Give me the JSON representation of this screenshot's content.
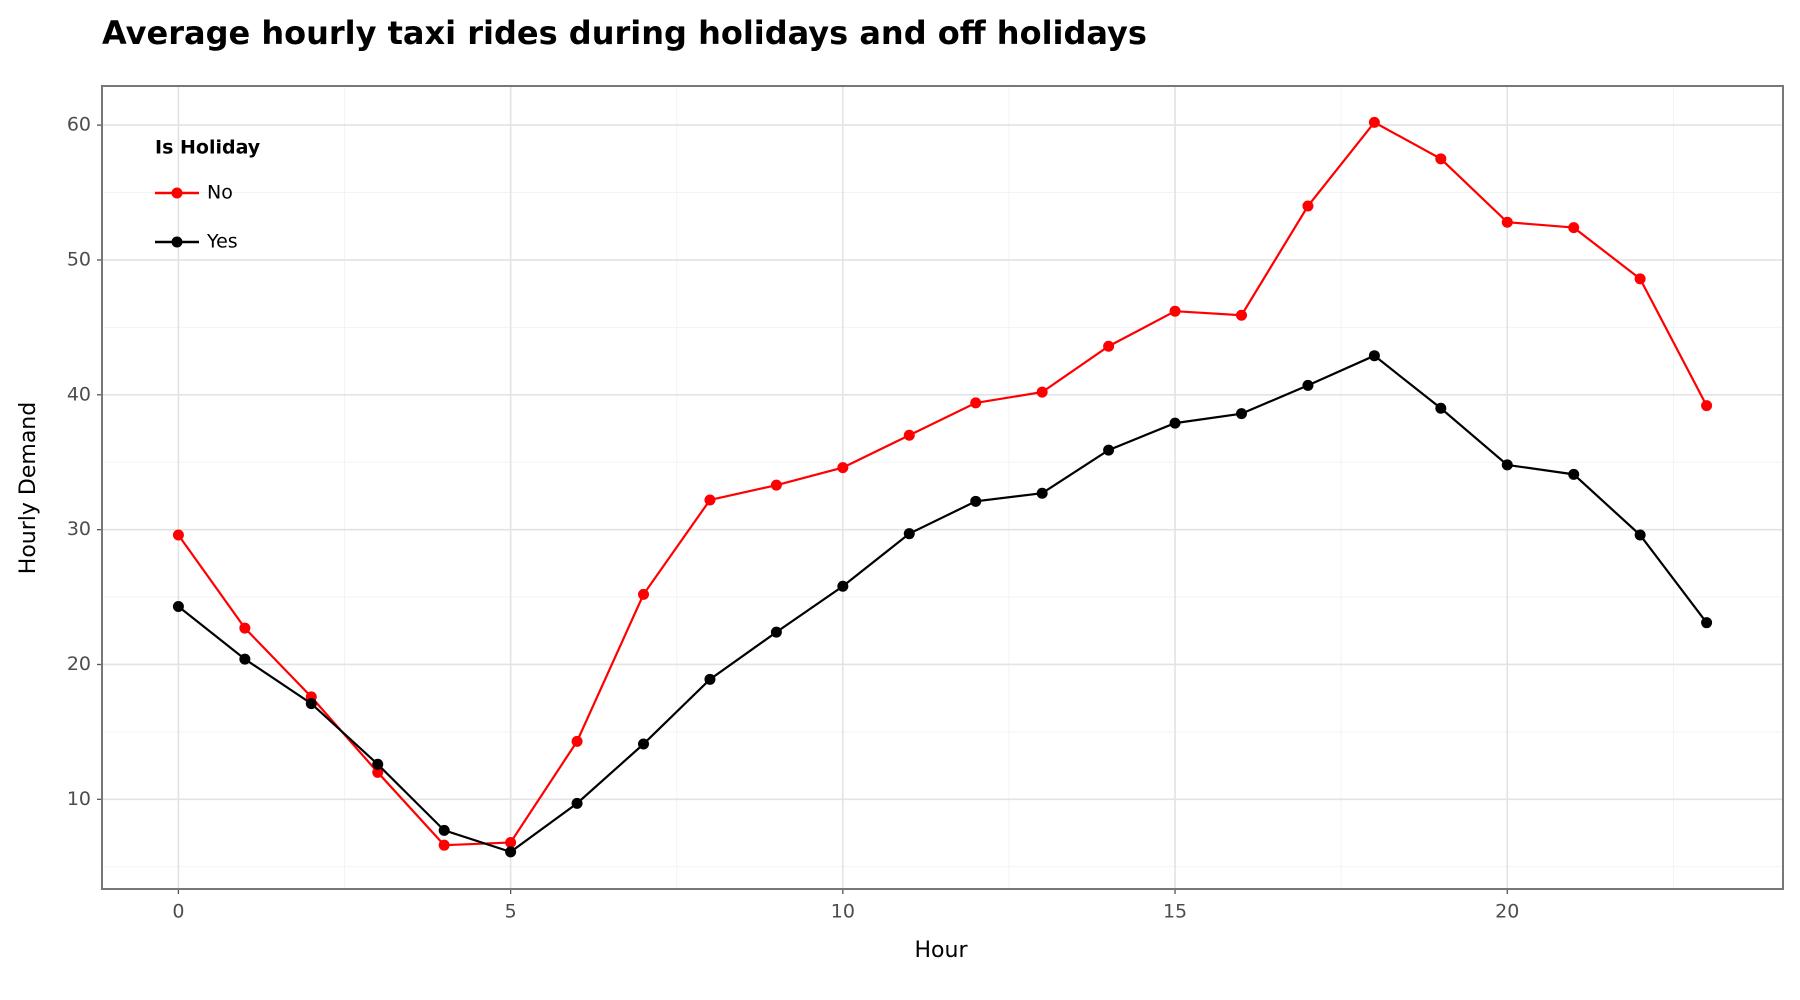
{
  "chart_data": {
    "type": "line",
    "title": "Average hourly taxi rides during holidays and off holidays",
    "x_label": "Hour",
    "y_label": "Hourly Demand",
    "legend_title": "Is Holiday",
    "legend_position": "upper left",
    "grid": true,
    "x": [
      0,
      1,
      2,
      3,
      4,
      5,
      6,
      7,
      8,
      9,
      10,
      11,
      12,
      13,
      14,
      15,
      16,
      17,
      18,
      19,
      20,
      21,
      22,
      23
    ],
    "series": [
      {
        "name": "No",
        "color": "#ff0000",
        "values": [
          29.6,
          22.7,
          17.6,
          12.0,
          6.6,
          6.8,
          14.3,
          25.2,
          32.2,
          33.3,
          34.6,
          37.0,
          39.4,
          40.2,
          43.6,
          46.2,
          45.9,
          54.0,
          60.2,
          57.5,
          52.8,
          52.4,
          48.6,
          39.2
        ]
      },
      {
        "name": "Yes",
        "color": "#000000",
        "values": [
          24.3,
          20.4,
          17.1,
          12.6,
          7.7,
          6.1,
          9.7,
          14.1,
          18.9,
          22.4,
          25.8,
          29.7,
          32.1,
          32.7,
          35.9,
          37.9,
          38.6,
          40.7,
          42.9,
          39.0,
          34.8,
          34.1,
          29.6,
          23.1
        ]
      }
    ],
    "xlim": [
      -1.15,
      24.15
    ],
    "ylim": [
      3.35,
      62.9
    ],
    "xticks": [
      0,
      5,
      10,
      15,
      20
    ],
    "yticks": [
      10,
      20,
      30,
      40,
      50,
      60
    ],
    "minor_xticks": [
      2.5,
      7.5,
      12.5,
      17.5,
      22.5
    ],
    "minor_yticks": [
      5,
      15,
      25,
      35,
      45,
      55
    ]
  }
}
